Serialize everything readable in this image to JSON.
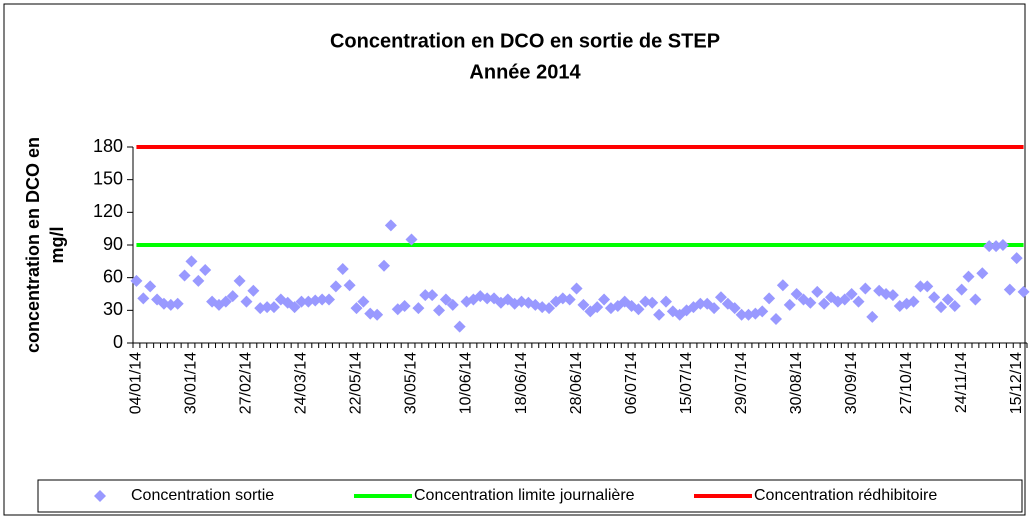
{
  "chart_data": {
    "type": "line",
    "title": "Concentration en DCO en sortie de STEP",
    "subtitle": "Année 2014",
    "ylabel": [
      "concentration en DCO en",
      "mg/l"
    ],
    "ylim": [
      0,
      180
    ],
    "yticks": [
      0,
      30,
      60,
      90,
      120,
      150,
      180
    ],
    "legend": "bottom",
    "categories": [
      "04/01/14",
      null,
      null,
      null,
      null,
      null,
      null,
      null,
      "30/01/14",
      null,
      null,
      null,
      null,
      null,
      null,
      null,
      "27/02/14",
      null,
      null,
      null,
      null,
      null,
      null,
      null,
      "24/03/14",
      null,
      null,
      null,
      null,
      null,
      null,
      null,
      "22/05/14",
      null,
      null,
      null,
      null,
      null,
      null,
      null,
      "30/05/14",
      null,
      null,
      null,
      null,
      null,
      null,
      null,
      "10/06/14",
      null,
      null,
      null,
      null,
      null,
      null,
      null,
      "18/06/14",
      null,
      null,
      null,
      null,
      null,
      null,
      null,
      "28/06/14",
      null,
      null,
      null,
      null,
      null,
      null,
      null,
      "06/07/14",
      null,
      null,
      null,
      null,
      null,
      null,
      null,
      "15/07/14",
      null,
      null,
      null,
      null,
      null,
      null,
      null,
      "29/07/14",
      null,
      null,
      null,
      null,
      null,
      null,
      null,
      "30/08/14",
      null,
      null,
      null,
      null,
      null,
      null,
      null,
      "30/09/14",
      null,
      null,
      null,
      null,
      null,
      null,
      null,
      "27/10/14",
      null,
      null,
      null,
      null,
      null,
      null,
      null,
      "24/11/14",
      null,
      null,
      null,
      null,
      null,
      null,
      null,
      "15/12/14",
      null
    ],
    "series": [
      {
        "name": "Concentration sortie",
        "color": "#9999ff",
        "style": "markers",
        "values": [
          57,
          41,
          52,
          40,
          36,
          35,
          36,
          62,
          75,
          57,
          67,
          38,
          35,
          38,
          43,
          57,
          38,
          48,
          32,
          33,
          33,
          40,
          37,
          33,
          38,
          38,
          39,
          40,
          40,
          52,
          68,
          53,
          32,
          38,
          27,
          26,
          71,
          108,
          31,
          34,
          95,
          32,
          44,
          44,
          30,
          40,
          35,
          15,
          38,
          40,
          43,
          41,
          41,
          37,
          40,
          36,
          38,
          37,
          35,
          33,
          32,
          38,
          41,
          40,
          50,
          35,
          29,
          33,
          40,
          32,
          34,
          38,
          34,
          31,
          38,
          37,
          26,
          38,
          29,
          26,
          30,
          33,
          36,
          36,
          32,
          42,
          36,
          32,
          26,
          26,
          27,
          29,
          41,
          22,
          53,
          35,
          45,
          40,
          37,
          47,
          36,
          42,
          38,
          40,
          45,
          38,
          50,
          24,
          48,
          45,
          44,
          34,
          36,
          38,
          52,
          52,
          42,
          33,
          40,
          34,
          49,
          61,
          40,
          64,
          89,
          89,
          90,
          49,
          78,
          47
        ]
      },
      {
        "name": "Concentration limite journalière",
        "color": "#00ff00",
        "style": "lines",
        "values": [
          90,
          90,
          90,
          90,
          90,
          90,
          90,
          90,
          90,
          90,
          90,
          90,
          90,
          90,
          90,
          90,
          90,
          90,
          90,
          90,
          90,
          90,
          90,
          90,
          90,
          90,
          90,
          90,
          90,
          90,
          90,
          90,
          90,
          90,
          90,
          90,
          90,
          90,
          90,
          90,
          90,
          90,
          90,
          90,
          90,
          90,
          90,
          90,
          90,
          90,
          90,
          90,
          90,
          90,
          90,
          90,
          90,
          90,
          90,
          90,
          90,
          90,
          90,
          90,
          90,
          90,
          90,
          90,
          90,
          90,
          90,
          90,
          90,
          90,
          90,
          90,
          90,
          90,
          90,
          90,
          90,
          90,
          90,
          90,
          90,
          90,
          90,
          90,
          90,
          90,
          90,
          90,
          90,
          90,
          90,
          90,
          90,
          90,
          90,
          90,
          90,
          90,
          90,
          90,
          90,
          90,
          90,
          90,
          90,
          90,
          90,
          90,
          90,
          90,
          90,
          90,
          90,
          90,
          90,
          90,
          90,
          90,
          90,
          90,
          90,
          90,
          90,
          90,
          90,
          90
        ]
      },
      {
        "name": "Concentration rédhibitoire",
        "color": "#ff0000",
        "style": "lines",
        "values": [
          180,
          180,
          180,
          180,
          180,
          180,
          180,
          180,
          180,
          180,
          180,
          180,
          180,
          180,
          180,
          180,
          180,
          180,
          180,
          180,
          180,
          180,
          180,
          180,
          180,
          180,
          180,
          180,
          180,
          180,
          180,
          180,
          180,
          180,
          180,
          180,
          180,
          180,
          180,
          180,
          180,
          180,
          180,
          180,
          180,
          180,
          180,
          180,
          180,
          180,
          180,
          180,
          180,
          180,
          180,
          180,
          180,
          180,
          180,
          180,
          180,
          180,
          180,
          180,
          180,
          180,
          180,
          180,
          180,
          180,
          180,
          180,
          180,
          180,
          180,
          180,
          180,
          180,
          180,
          180,
          180,
          180,
          180,
          180,
          180,
          180,
          180,
          180,
          180,
          180,
          180,
          180,
          180,
          180,
          180,
          180,
          180,
          180,
          180,
          180,
          180,
          180,
          180,
          180,
          180,
          180,
          180,
          180,
          180,
          180,
          180,
          180,
          180,
          180,
          180,
          180,
          180,
          180,
          180,
          180,
          180,
          180,
          180,
          180,
          180,
          180,
          180,
          180,
          180,
          180
        ]
      }
    ]
  }
}
